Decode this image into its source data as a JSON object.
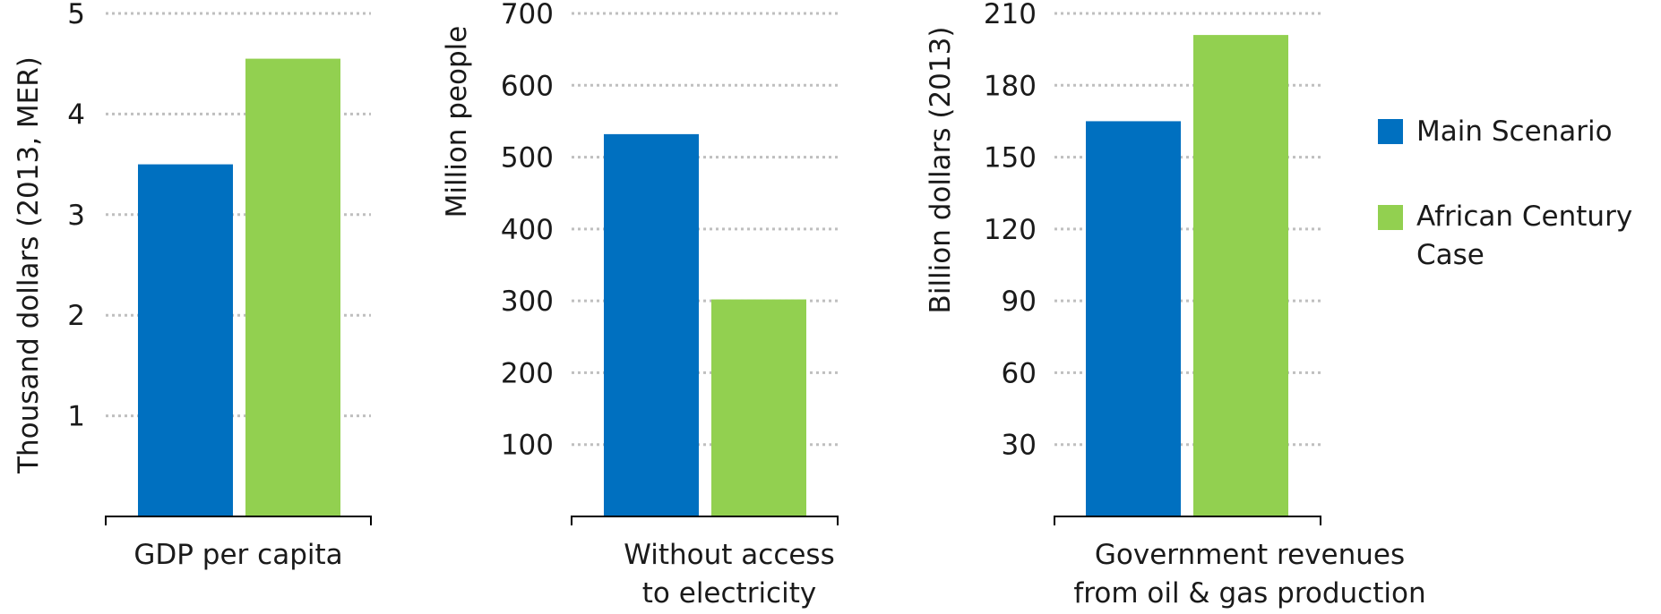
{
  "chart_data": [
    {
      "type": "bar",
      "categories": [
        "GDP per capita"
      ],
      "series": [
        {
          "name": "Main Scenario",
          "values": [
            3.5
          ]
        },
        {
          "name": "African Century Case",
          "values": [
            4.55
          ]
        }
      ],
      "title": "",
      "xlabel": "",
      "ylabel": "Thousand dollars (2013, MER)",
      "ylim": [
        0,
        5
      ],
      "yticks": [
        1,
        2,
        3,
        4,
        5
      ],
      "grid": true
    },
    {
      "type": "bar",
      "categories": [
        "Without access to electricity"
      ],
      "series": [
        {
          "name": "Main Scenario",
          "values": [
            532
          ]
        },
        {
          "name": "African Century Case",
          "values": [
            302
          ]
        }
      ],
      "title": "",
      "xlabel": "",
      "ylabel": "Million people",
      "ylim": [
        0,
        700
      ],
      "yticks": [
        100,
        200,
        300,
        400,
        500,
        600,
        700
      ],
      "grid": true
    },
    {
      "type": "bar",
      "categories": [
        "Government revenues from oil & gas production"
      ],
      "series": [
        {
          "name": "Main Scenario",
          "values": [
            165
          ]
        },
        {
          "name": "African Century Case",
          "values": [
            201
          ]
        }
      ],
      "title": "",
      "xlabel": "",
      "ylabel": "Billion dollars (2013)",
      "ylim": [
        0,
        210
      ],
      "yticks": [
        30,
        60,
        90,
        120,
        150,
        180,
        210
      ],
      "grid": true
    }
  ],
  "category_lines": [
    [
      "GDP per capita"
    ],
    [
      "Without access",
      "to electricity"
    ],
    [
      "Government revenues",
      "from oil & gas production"
    ]
  ],
  "legend": {
    "placement": "right",
    "items": [
      {
        "lines": [
          "Main Scenario"
        ],
        "color": "#0070c0"
      },
      {
        "lines": [
          "African Century",
          "Case"
        ],
        "color": "#92d050"
      }
    ]
  },
  "colors": {
    "main_scenario": "#0070c0",
    "african_century_case": "#92d050",
    "grid": "#bfbfbf",
    "axis": "#000000"
  }
}
